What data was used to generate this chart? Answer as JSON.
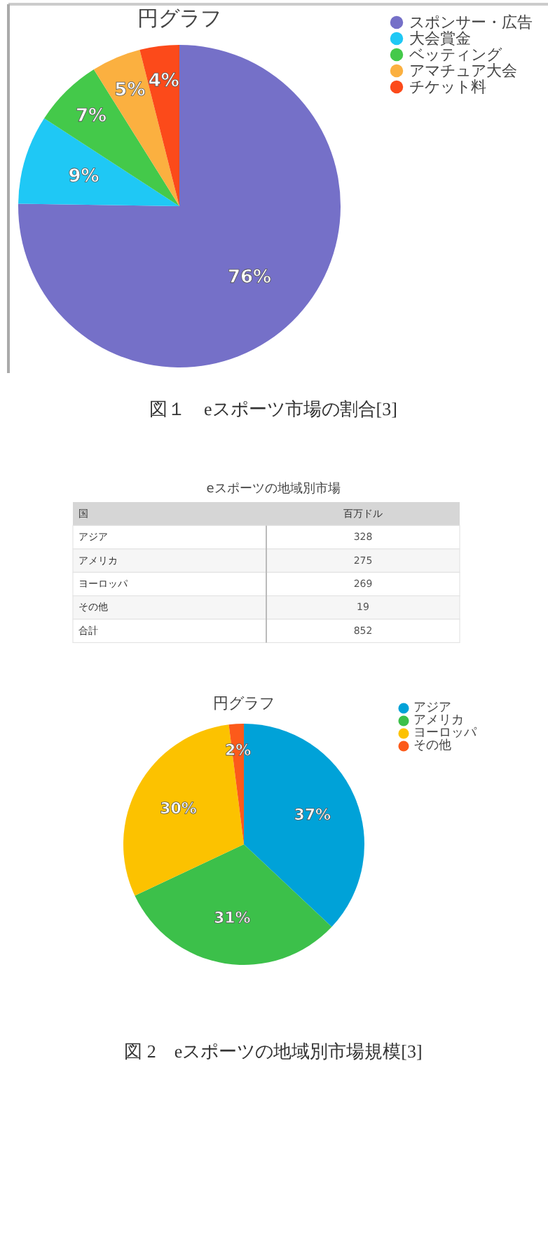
{
  "chart_data": [
    {
      "type": "pie",
      "title": "円グラフ",
      "categories": [
        "スポンサー・広告",
        "大会賞金",
        "ベッティング",
        "アマチュア大会",
        "チケット料"
      ],
      "values": [
        76,
        9,
        7,
        5,
        4
      ],
      "colors": [
        "#7570c8",
        "#1fc8f5",
        "#44c94a",
        "#fbb040",
        "#fc4a1a"
      ],
      "value_labels": [
        "76%",
        "9%",
        "7%",
        "5%",
        "4%"
      ],
      "legend": "top right",
      "annotations": [
        "図１　eスポーツ市場の割合[3]"
      ]
    },
    {
      "type": "other",
      "title": "eスポーツの地域別市場",
      "categories": [
        "アジア",
        "アメリカ",
        "ヨーロッパ",
        "その他",
        "合計"
      ],
      "values": [
        328,
        275,
        269,
        19,
        852
      ],
      "data_labels": true,
      "annotations": [
        "国",
        "百万ドル"
      ]
    },
    {
      "type": "pie",
      "title": "円グラフ",
      "categories": [
        "アジア",
        "アメリカ",
        "ヨーロッパ",
        "その他"
      ],
      "values": [
        37,
        31,
        30,
        2
      ],
      "colors": [
        "#00a2d8",
        "#3cc04a",
        "#fcc200",
        "#fc5a1a"
      ],
      "value_labels": [
        "37%",
        "31%",
        "30%",
        "2%"
      ],
      "legend": "top right",
      "annotations": [
        "図 2　eスポーツの地域別市場規模[3]"
      ]
    }
  ]
}
